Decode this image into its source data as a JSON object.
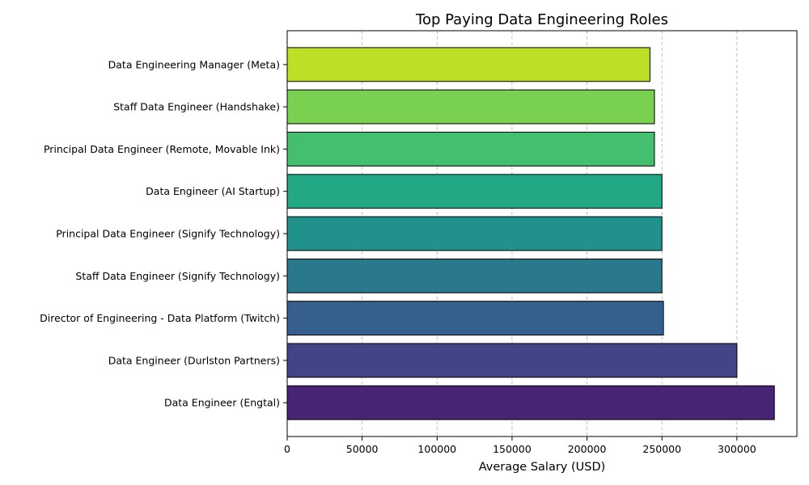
{
  "chart_data": {
    "type": "bar",
    "orientation": "horizontal",
    "title": "Top Paying Data Engineering Roles",
    "xlabel": "Average Salary (USD)",
    "ylabel": "",
    "xlim": [
      0,
      340000
    ],
    "x_ticks": [
      0,
      50000,
      100000,
      150000,
      200000,
      250000,
      300000
    ],
    "grid": {
      "x": true,
      "y": false
    },
    "categories": [
      "Data Engineering Manager (Meta)",
      "Staff Data Engineer (Handshake)",
      "Principal Data Engineer (Remote, Movable Ink)",
      "Data Engineer (AI Startup)",
      "Principal Data Engineer (Signify Technology)",
      "Staff Data Engineer (Signify Technology)",
      "Director of Engineering - Data Platform (Twitch)",
      "Data Engineer (Durlston Partners)",
      "Data Engineer (Engtal)"
    ],
    "values": [
      242000,
      245000,
      245000,
      250000,
      250000,
      250000,
      251000,
      300000,
      325000
    ],
    "colors": [
      "#bddf26",
      "#7ad151",
      "#44bf70",
      "#22a884",
      "#21918c",
      "#2a788e",
      "#355f8d",
      "#414487",
      "#482475"
    ]
  }
}
